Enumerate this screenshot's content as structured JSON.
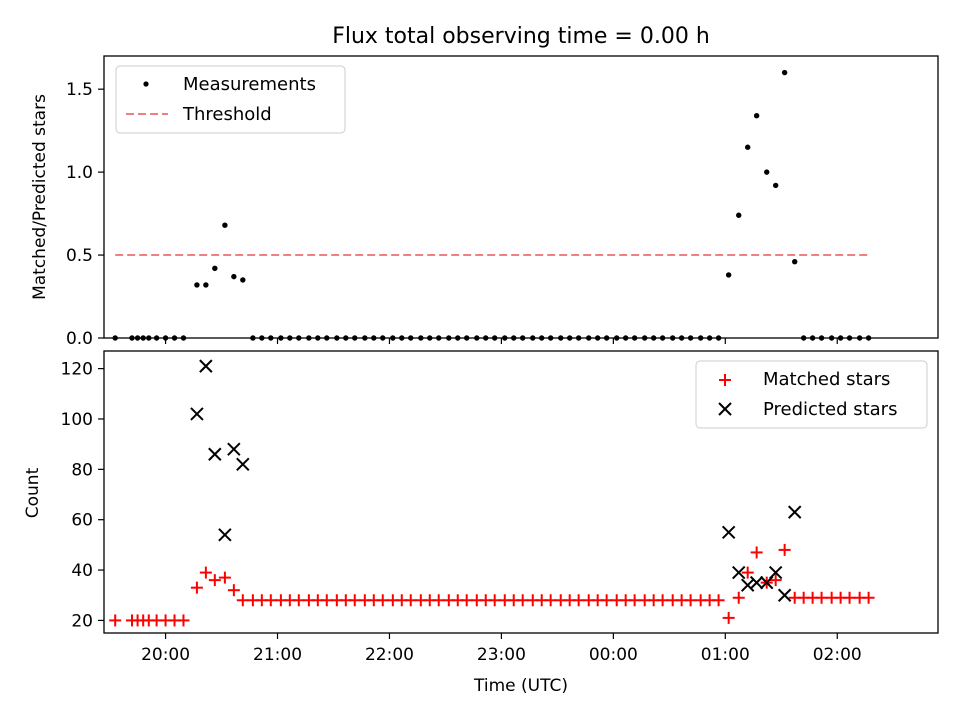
{
  "chart_data": [
    {
      "type": "scatter",
      "title": "Flux total observing time = 0.00 h",
      "ylabel": "Matched/Predicted stars",
      "xlabel": "",
      "x_ticks": [
        "20:00",
        "21:00",
        "22:00",
        "23:00",
        "00:00",
        "01:00",
        "02:00"
      ],
      "xlim": [
        19.45,
        26.9
      ],
      "ylim": [
        0,
        1.7
      ],
      "y_ticks": [
        "0.0",
        "0.5",
        "1.0",
        "1.5"
      ],
      "y_tick_values": [
        0,
        0.5,
        1.0,
        1.5
      ],
      "legend_position": "top-left",
      "series": [
        {
          "name": "Measurements",
          "marker": "dot",
          "color": "#000000",
          "points": [
            [
              19.55,
              0
            ],
            [
              19.7,
              0
            ],
            [
              19.75,
              0
            ],
            [
              19.8,
              0
            ],
            [
              19.85,
              0
            ],
            [
              19.92,
              0
            ],
            [
              20.0,
              0
            ],
            [
              20.08,
              0
            ],
            [
              20.16,
              0
            ],
            [
              20.28,
              0.32
            ],
            [
              20.36,
              0.32
            ],
            [
              20.44,
              0.42
            ],
            [
              20.53,
              0.68
            ],
            [
              20.61,
              0.37
            ],
            [
              20.69,
              0.35
            ],
            [
              20.78,
              0
            ],
            [
              20.86,
              0
            ],
            [
              20.94,
              0
            ],
            [
              21.03,
              0
            ],
            [
              21.11,
              0
            ],
            [
              21.19,
              0
            ],
            [
              21.28,
              0
            ],
            [
              21.36,
              0
            ],
            [
              21.44,
              0
            ],
            [
              21.53,
              0
            ],
            [
              21.61,
              0
            ],
            [
              21.69,
              0
            ],
            [
              21.78,
              0
            ],
            [
              21.86,
              0
            ],
            [
              21.94,
              0
            ],
            [
              22.03,
              0
            ],
            [
              22.11,
              0
            ],
            [
              22.19,
              0
            ],
            [
              22.28,
              0
            ],
            [
              22.36,
              0
            ],
            [
              22.44,
              0
            ],
            [
              22.53,
              0
            ],
            [
              22.61,
              0
            ],
            [
              22.69,
              0
            ],
            [
              22.78,
              0
            ],
            [
              22.86,
              0
            ],
            [
              22.94,
              0
            ],
            [
              23.03,
              0
            ],
            [
              23.11,
              0
            ],
            [
              23.19,
              0
            ],
            [
              23.28,
              0
            ],
            [
              23.36,
              0
            ],
            [
              23.44,
              0
            ],
            [
              23.53,
              0
            ],
            [
              23.61,
              0
            ],
            [
              23.69,
              0
            ],
            [
              23.78,
              0
            ],
            [
              23.86,
              0
            ],
            [
              23.94,
              0
            ],
            [
              24.03,
              0
            ],
            [
              24.11,
              0
            ],
            [
              24.19,
              0
            ],
            [
              24.28,
              0
            ],
            [
              24.36,
              0
            ],
            [
              24.44,
              0
            ],
            [
              24.53,
              0
            ],
            [
              24.61,
              0
            ],
            [
              24.69,
              0
            ],
            [
              24.78,
              0
            ],
            [
              24.86,
              0
            ],
            [
              24.94,
              0
            ],
            [
              25.03,
              0.38
            ],
            [
              25.12,
              0.74
            ],
            [
              25.2,
              1.15
            ],
            [
              25.28,
              1.34
            ],
            [
              25.37,
              1.0
            ],
            [
              25.45,
              0.92
            ],
            [
              25.53,
              1.6
            ],
            [
              25.62,
              0.46
            ],
            [
              25.7,
              0
            ],
            [
              25.78,
              0
            ],
            [
              25.86,
              0
            ],
            [
              25.95,
              0
            ],
            [
              26.03,
              0
            ],
            [
              26.11,
              0
            ],
            [
              26.2,
              0
            ],
            [
              26.28,
              0
            ]
          ]
        },
        {
          "name": "Threshold",
          "marker": "dashed-line",
          "color": "#f08080",
          "points": [
            [
              19.55,
              0.5
            ],
            [
              26.3,
              0.5
            ]
          ]
        }
      ]
    },
    {
      "type": "scatter",
      "title": "",
      "ylabel": "Count",
      "xlabel": "Time (UTC)",
      "x_ticks": [
        "20:00",
        "21:00",
        "22:00",
        "23:00",
        "00:00",
        "01:00",
        "02:00"
      ],
      "xlim": [
        19.45,
        26.9
      ],
      "ylim": [
        15,
        127
      ],
      "y_ticks": [
        "20",
        "40",
        "60",
        "80",
        "100",
        "120"
      ],
      "y_tick_values": [
        20,
        40,
        60,
        80,
        100,
        120
      ],
      "legend_position": "top-right",
      "series": [
        {
          "name": "Matched stars",
          "marker": "plus",
          "color": "#ff0000",
          "points": [
            [
              19.55,
              20
            ],
            [
              19.7,
              20
            ],
            [
              19.75,
              20
            ],
            [
              19.8,
              20
            ],
            [
              19.85,
              20
            ],
            [
              19.92,
              20
            ],
            [
              20.0,
              20
            ],
            [
              20.08,
              20
            ],
            [
              20.16,
              20
            ],
            [
              20.28,
              33
            ],
            [
              20.36,
              39
            ],
            [
              20.44,
              36
            ],
            [
              20.53,
              37
            ],
            [
              20.61,
              32
            ],
            [
              20.69,
              28
            ],
            [
              20.78,
              28
            ],
            [
              20.86,
              28
            ],
            [
              20.94,
              28
            ],
            [
              21.03,
              28
            ],
            [
              21.11,
              28
            ],
            [
              21.19,
              28
            ],
            [
              21.28,
              28
            ],
            [
              21.36,
              28
            ],
            [
              21.44,
              28
            ],
            [
              21.53,
              28
            ],
            [
              21.61,
              28
            ],
            [
              21.69,
              28
            ],
            [
              21.78,
              28
            ],
            [
              21.86,
              28
            ],
            [
              21.94,
              28
            ],
            [
              22.03,
              28
            ],
            [
              22.11,
              28
            ],
            [
              22.19,
              28
            ],
            [
              22.28,
              28
            ],
            [
              22.36,
              28
            ],
            [
              22.44,
              28
            ],
            [
              22.53,
              28
            ],
            [
              22.61,
              28
            ],
            [
              22.69,
              28
            ],
            [
              22.78,
              28
            ],
            [
              22.86,
              28
            ],
            [
              22.94,
              28
            ],
            [
              23.03,
              28
            ],
            [
              23.11,
              28
            ],
            [
              23.19,
              28
            ],
            [
              23.28,
              28
            ],
            [
              23.36,
              28
            ],
            [
              23.44,
              28
            ],
            [
              23.53,
              28
            ],
            [
              23.61,
              28
            ],
            [
              23.69,
              28
            ],
            [
              23.78,
              28
            ],
            [
              23.86,
              28
            ],
            [
              23.94,
              28
            ],
            [
              24.03,
              28
            ],
            [
              24.11,
              28
            ],
            [
              24.19,
              28
            ],
            [
              24.28,
              28
            ],
            [
              24.36,
              28
            ],
            [
              24.44,
              28
            ],
            [
              24.53,
              28
            ],
            [
              24.61,
              28
            ],
            [
              24.69,
              28
            ],
            [
              24.78,
              28
            ],
            [
              24.86,
              28
            ],
            [
              24.94,
              28
            ],
            [
              25.03,
              21
            ],
            [
              25.12,
              29
            ],
            [
              25.2,
              39
            ],
            [
              25.28,
              47
            ],
            [
              25.37,
              35
            ],
            [
              25.45,
              36
            ],
            [
              25.53,
              48
            ],
            [
              25.62,
              29
            ],
            [
              25.7,
              29
            ],
            [
              25.78,
              29
            ],
            [
              25.86,
              29
            ],
            [
              25.95,
              29
            ],
            [
              26.03,
              29
            ],
            [
              26.11,
              29
            ],
            [
              26.2,
              29
            ],
            [
              26.28,
              29
            ]
          ]
        },
        {
          "name": "Predicted stars",
          "marker": "x",
          "color": "#000000",
          "points": [
            [
              20.28,
              102
            ],
            [
              20.36,
              121
            ],
            [
              20.44,
              86
            ],
            [
              20.53,
              54
            ],
            [
              20.61,
              88
            ],
            [
              20.69,
              82
            ],
            [
              25.03,
              55
            ],
            [
              25.12,
              39
            ],
            [
              25.2,
              34
            ],
            [
              25.28,
              35
            ],
            [
              25.37,
              35
            ],
            [
              25.45,
              39
            ],
            [
              25.53,
              30
            ],
            [
              25.62,
              63
            ]
          ]
        }
      ]
    }
  ]
}
